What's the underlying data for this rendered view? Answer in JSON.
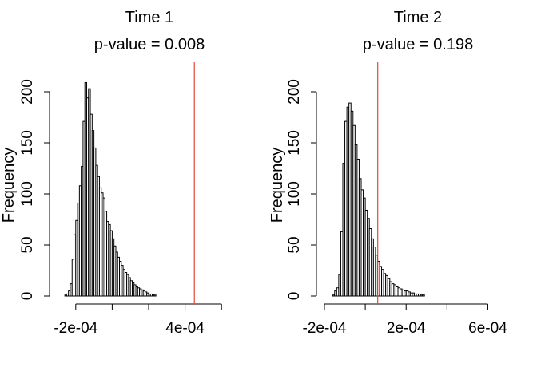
{
  "chart_data": [
    {
      "type": "bar",
      "title": "Time 1",
      "subtitle": "p-value = 0.008",
      "ylabel": "Frequency",
      "xlabel": "",
      "xlim": [
        -0.0003,
        0.0007
      ],
      "ylim": [
        0,
        200
      ],
      "bin_width": 1e-05,
      "bin_start": -0.00026,
      "values": [
        1,
        2,
        5,
        12,
        36,
        60,
        74,
        91,
        108,
        127,
        171,
        209,
        194,
        203,
        178,
        162,
        145,
        128,
        117,
        106,
        101,
        96,
        83,
        73,
        70,
        64,
        56,
        49,
        43,
        38,
        34,
        30,
        26,
        23,
        21,
        18,
        15,
        13,
        11,
        9,
        8,
        7,
        6,
        5,
        4,
        3,
        2,
        2,
        1,
        1
      ],
      "xticks": [
        -0.0002,
        0.0,
        0.0002,
        0.0004,
        0.0006
      ],
      "xtick_labels": [
        "-2e-04",
        "",
        "",
        "4e-04",
        ""
      ],
      "yticks": [
        0,
        50,
        100,
        150,
        200
      ],
      "ytick_labels": [
        "0",
        "50",
        "100",
        "150",
        "200"
      ],
      "observed_line": 0.000451,
      "observed_line_color": "#e8473b"
    },
    {
      "type": "bar",
      "title": "Time 2",
      "subtitle": "p-value = 0.198",
      "ylabel": "Frequency",
      "xlabel": "",
      "xlim": [
        -0.0002,
        0.0007
      ],
      "ylim": [
        0,
        200
      ],
      "bin_width": 1e-05,
      "bin_start": -0.00016,
      "values": [
        1,
        5,
        8,
        21,
        63,
        130,
        171,
        185,
        189,
        181,
        167,
        148,
        134,
        115,
        104,
        96,
        84,
        76,
        66,
        56,
        48,
        40,
        34,
        29,
        26,
        22,
        20,
        17,
        14,
        12,
        11,
        9,
        8,
        7,
        6,
        5,
        5,
        4,
        3,
        3,
        2,
        2,
        2,
        1,
        1
      ],
      "xticks": [
        -0.0002,
        0.0,
        0.0002,
        0.0004,
        0.0006
      ],
      "xtick_labels": [
        "-2e-04",
        "",
        "2e-04",
        "",
        "6e-04"
      ],
      "yticks": [
        0,
        50,
        100,
        150,
        200
      ],
      "ytick_labels": [
        "0",
        "50",
        "100",
        "150",
        "200"
      ],
      "observed_line": 6.1e-05,
      "observed_line_color": "#e8473b"
    }
  ]
}
